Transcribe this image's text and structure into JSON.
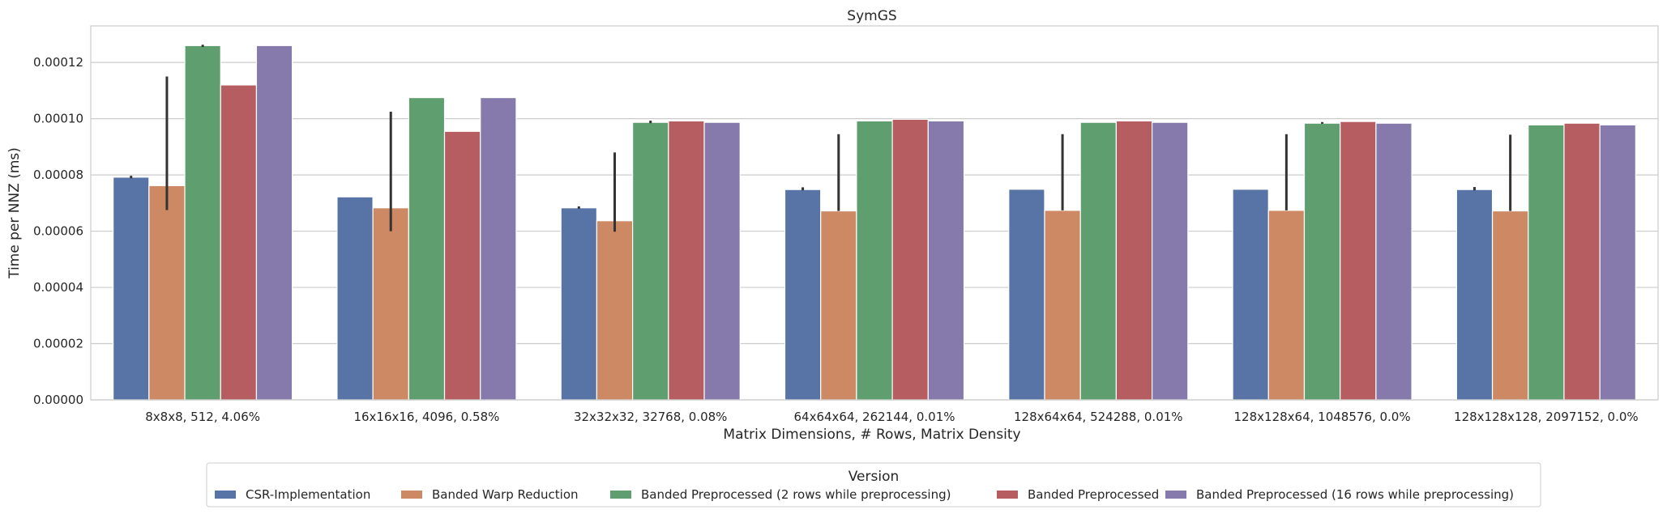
{
  "chart_data": {
    "type": "bar",
    "title": "SymGS",
    "xlabel": "Matrix Dimensions, # Rows, Matrix Density",
    "ylabel": "Time per NNZ (ms)",
    "ylim": [
      0,
      0.000133
    ],
    "yticks": [
      "0.00000",
      "0.00002",
      "0.00004",
      "0.00006",
      "0.00008",
      "0.00010",
      "0.00012"
    ],
    "grid": "horizontal",
    "legend_placement": "bottom-center",
    "legend_title": "Version",
    "categories": [
      "8x8x8, 512, 4.06%",
      "16x16x16, 4096, 0.58%",
      "32x32x32, 32768, 0.08%",
      "64x64x64, 262144, 0.01%",
      "128x64x64, 524288, 0.01%",
      "128x128x64, 1048576, 0.0%",
      "128x128x128, 2097152, 0.0%"
    ],
    "series": [
      {
        "name": "CSR-Implementation",
        "color": "#5874a6",
        "values": [
          7.92e-05,
          7.22e-05,
          6.83e-05,
          7.48e-05,
          7.49e-05,
          7.49e-05,
          7.48e-05
        ],
        "error": [
          [
            7.88e-05,
            7.97e-05
          ],
          null,
          [
            6.8e-05,
            6.88e-05
          ],
          [
            7.45e-05,
            7.56e-05
          ],
          null,
          null,
          [
            7.45e-05,
            7.57e-05
          ]
        ]
      },
      {
        "name": "Banded Warp Reduction",
        "color": "#cc8963",
        "values": [
          7.62e-05,
          6.83e-05,
          6.37e-05,
          6.72e-05,
          6.74e-05,
          6.74e-05,
          6.72e-05
        ],
        "error": [
          [
            6.75e-05,
            0.000115
          ],
          [
            6e-05,
            0.0001025
          ],
          [
            5.98e-05,
            8.8e-05
          ],
          [
            6.72e-05,
            9.45e-05
          ],
          [
            6.74e-05,
            9.45e-05
          ],
          [
            6.74e-05,
            9.45e-05
          ],
          [
            6.72e-05,
            9.43e-05
          ]
        ]
      },
      {
        "name": "Banded Preprocessed (2 rows while preprocessing)",
        "color": "#5f9e6e",
        "values": [
          0.000126,
          0.0001075,
          9.87e-05,
          9.92e-05,
          9.87e-05,
          9.84e-05,
          9.78e-05
        ],
        "error": [
          [
            0.0001255,
            0.0001263
          ],
          null,
          [
            9.84e-05,
            9.93e-05
          ],
          null,
          null,
          [
            9.82e-05,
            9.88e-05
          ],
          null
        ]
      },
      {
        "name": "Banded Preprocessed",
        "color": "#b55d60",
        "values": [
          0.000112,
          9.55e-05,
          9.92e-05,
          9.98e-05,
          9.92e-05,
          9.9e-05,
          9.84e-05
        ],
        "error": [
          null,
          null,
          null,
          null,
          null,
          null,
          null
        ]
      },
      {
        "name": "Banded Preprocessed (16 rows while preprocessing)",
        "color": "#857aab",
        "values": [
          0.000126,
          0.0001075,
          9.87e-05,
          9.92e-05,
          9.87e-05,
          9.84e-05,
          9.78e-05
        ],
        "error": [
          null,
          null,
          null,
          null,
          null,
          null,
          null
        ]
      }
    ]
  }
}
